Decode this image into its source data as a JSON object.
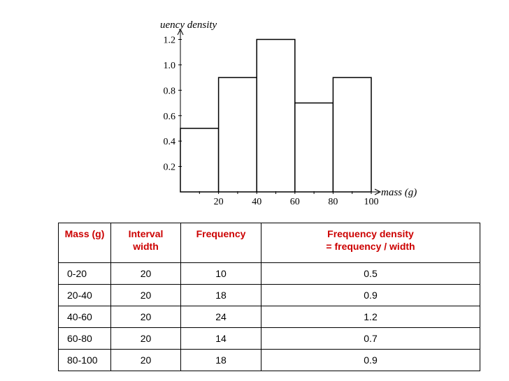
{
  "chart_data": {
    "type": "bar",
    "ylabel": "uency density",
    "xlabel": "mass (g)",
    "bins": [
      {
        "x0": 0,
        "x1": 20,
        "value": 0.5
      },
      {
        "x0": 20,
        "x1": 40,
        "value": 0.9
      },
      {
        "x0": 40,
        "x1": 60,
        "value": 1.2
      },
      {
        "x0": 60,
        "x1": 80,
        "value": 0.7
      },
      {
        "x0": 80,
        "x1": 100,
        "value": 0.9
      }
    ],
    "x_ticks": [
      20,
      40,
      60,
      80,
      100
    ],
    "y_ticks": [
      "0.2",
      "0.4",
      "0.6",
      "0.8",
      "1.0",
      "1.2"
    ],
    "xlim": [
      0,
      100
    ],
    "ylim": [
      0,
      1.2
    ]
  },
  "table": {
    "headers": [
      "Mass (g)",
      "Interval width",
      "Frequency",
      "Frequency density = frequency / width"
    ],
    "header_lines": [
      [
        "Mass (g)"
      ],
      [
        "Interval",
        "width"
      ],
      [
        "Frequency"
      ],
      [
        "Frequency density",
        "= frequency / width"
      ]
    ],
    "rows": [
      [
        "0-20",
        "20",
        "10",
        "0.5"
      ],
      [
        "20-40",
        "20",
        "18",
        "0.9"
      ],
      [
        "40-60",
        "20",
        "24",
        "1.2"
      ],
      [
        "60-80",
        "20",
        "14",
        "0.7"
      ],
      [
        "80-100",
        "20",
        "18",
        "0.9"
      ]
    ]
  },
  "colors": {
    "header_text": "#cc0000",
    "axis": "#000000",
    "bar_fill": "#ffffff"
  }
}
